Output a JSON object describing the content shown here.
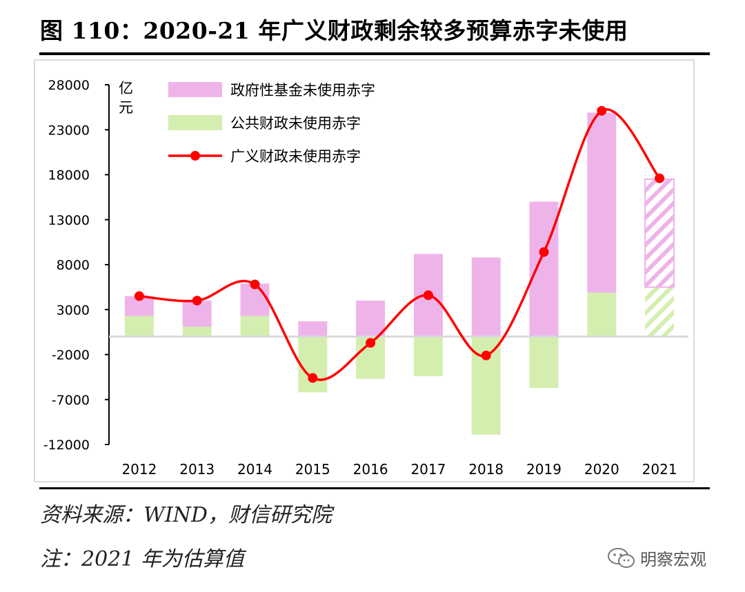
{
  "header": {
    "title": "图 110：2020-21 年广义财政剩余较多预算赤字未使用"
  },
  "footer": {
    "source": "资料来源：WIND，财信研究院",
    "note": "注：2021 年为估算值",
    "watermark": "明察宏观"
  },
  "chart_data": {
    "type": "bar",
    "stacked": true,
    "categories": [
      "2012",
      "2013",
      "2014",
      "2015",
      "2016",
      "2017",
      "2018",
      "2019",
      "2020",
      "2021"
    ],
    "unit_label": [
      "亿",
      "元"
    ],
    "ylim": [
      -12000,
      28000
    ],
    "yticks": [
      28000,
      23000,
      18000,
      13000,
      8000,
      3000,
      -2000,
      -7000,
      -12000
    ],
    "legend_position": "top-left",
    "estimated_category": "2021",
    "series": [
      {
        "name": "政府性基金未使用赤字",
        "type": "bar",
        "color": "#eeb4ea",
        "values": [
          2200,
          2900,
          3600,
          1700,
          4000,
          9200,
          8800,
          15000,
          20000,
          12000
        ]
      },
      {
        "name": "公共财政未使用赤字",
        "type": "bar",
        "color": "#d4eeb0",
        "values": [
          2300,
          1100,
          2300,
          -6200,
          -4700,
          -4400,
          -10900,
          -5700,
          4900,
          5500
        ]
      },
      {
        "name": "广义财政未使用赤字",
        "type": "line",
        "color": "#ff0000",
        "values": [
          4500,
          4000,
          5800,
          -4600,
          -700,
          4600,
          -2100,
          9400,
          25100,
          17600
        ]
      }
    ]
  }
}
